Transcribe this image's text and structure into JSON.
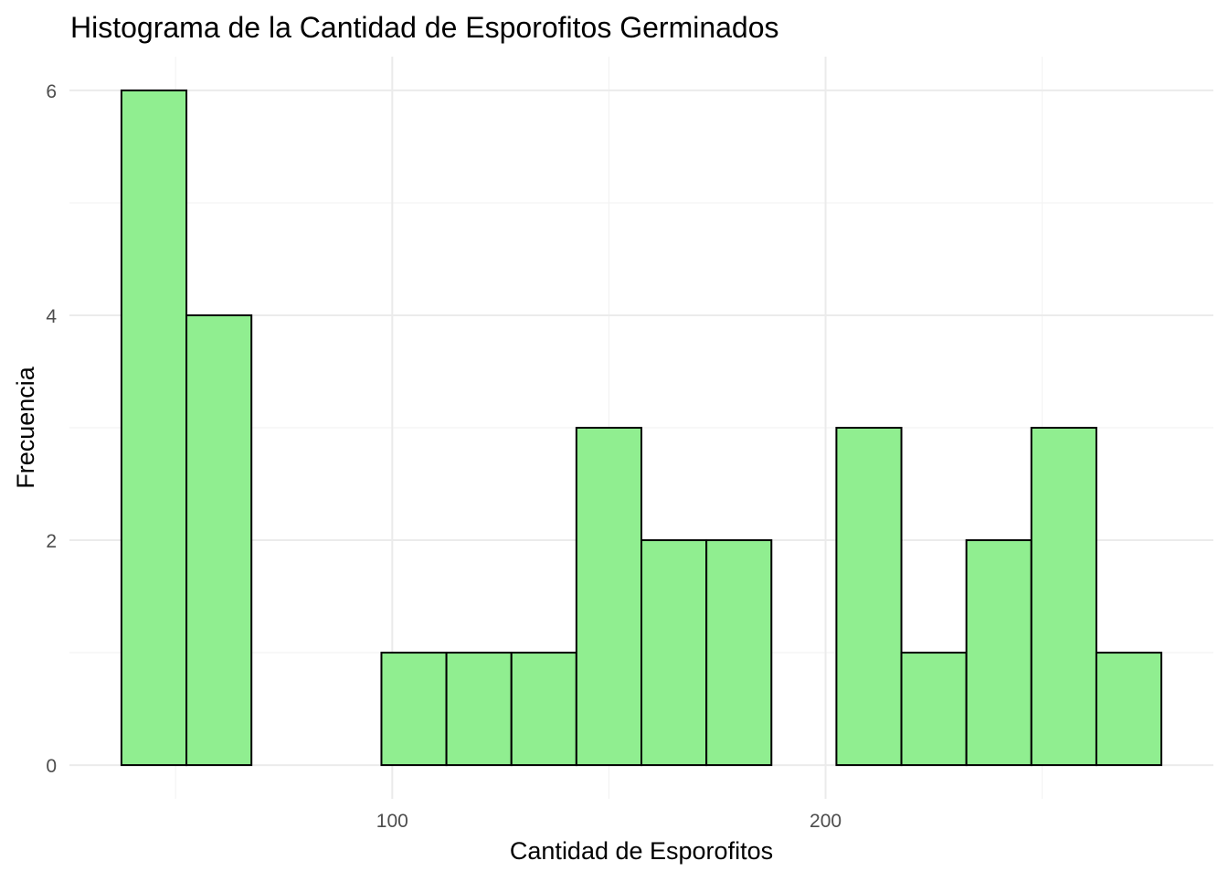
{
  "chart_data": {
    "type": "bar",
    "subtype": "histogram",
    "title": "Histograma de la Cantidad de Esporofitos Germinados",
    "xlabel": "Cantidad de Esporofitos",
    "ylabel": "Frecuencia",
    "bin_edges": [
      37.5,
      52.5,
      67.5,
      82.5,
      97.5,
      112.5,
      127.5,
      142.5,
      157.5,
      172.5,
      187.5,
      202.5,
      217.5,
      232.5,
      247.5,
      262.5,
      277.5
    ],
    "values": [
      6,
      4,
      0,
      0,
      1,
      1,
      1,
      3,
      2,
      2,
      0,
      3,
      1,
      2,
      3,
      1
    ],
    "xlim": [
      25.5,
      289.5
    ],
    "ylim": [
      -0.3,
      6.3
    ],
    "xticks": [
      100,
      200
    ],
    "xticks_minor": [
      50,
      150,
      250
    ],
    "yticks": [
      0,
      2,
      4,
      6
    ],
    "yticks_minor": [
      1,
      3,
      5
    ],
    "grid": true,
    "fill_color": "#90EE90",
    "edge_color": "#000000"
  }
}
